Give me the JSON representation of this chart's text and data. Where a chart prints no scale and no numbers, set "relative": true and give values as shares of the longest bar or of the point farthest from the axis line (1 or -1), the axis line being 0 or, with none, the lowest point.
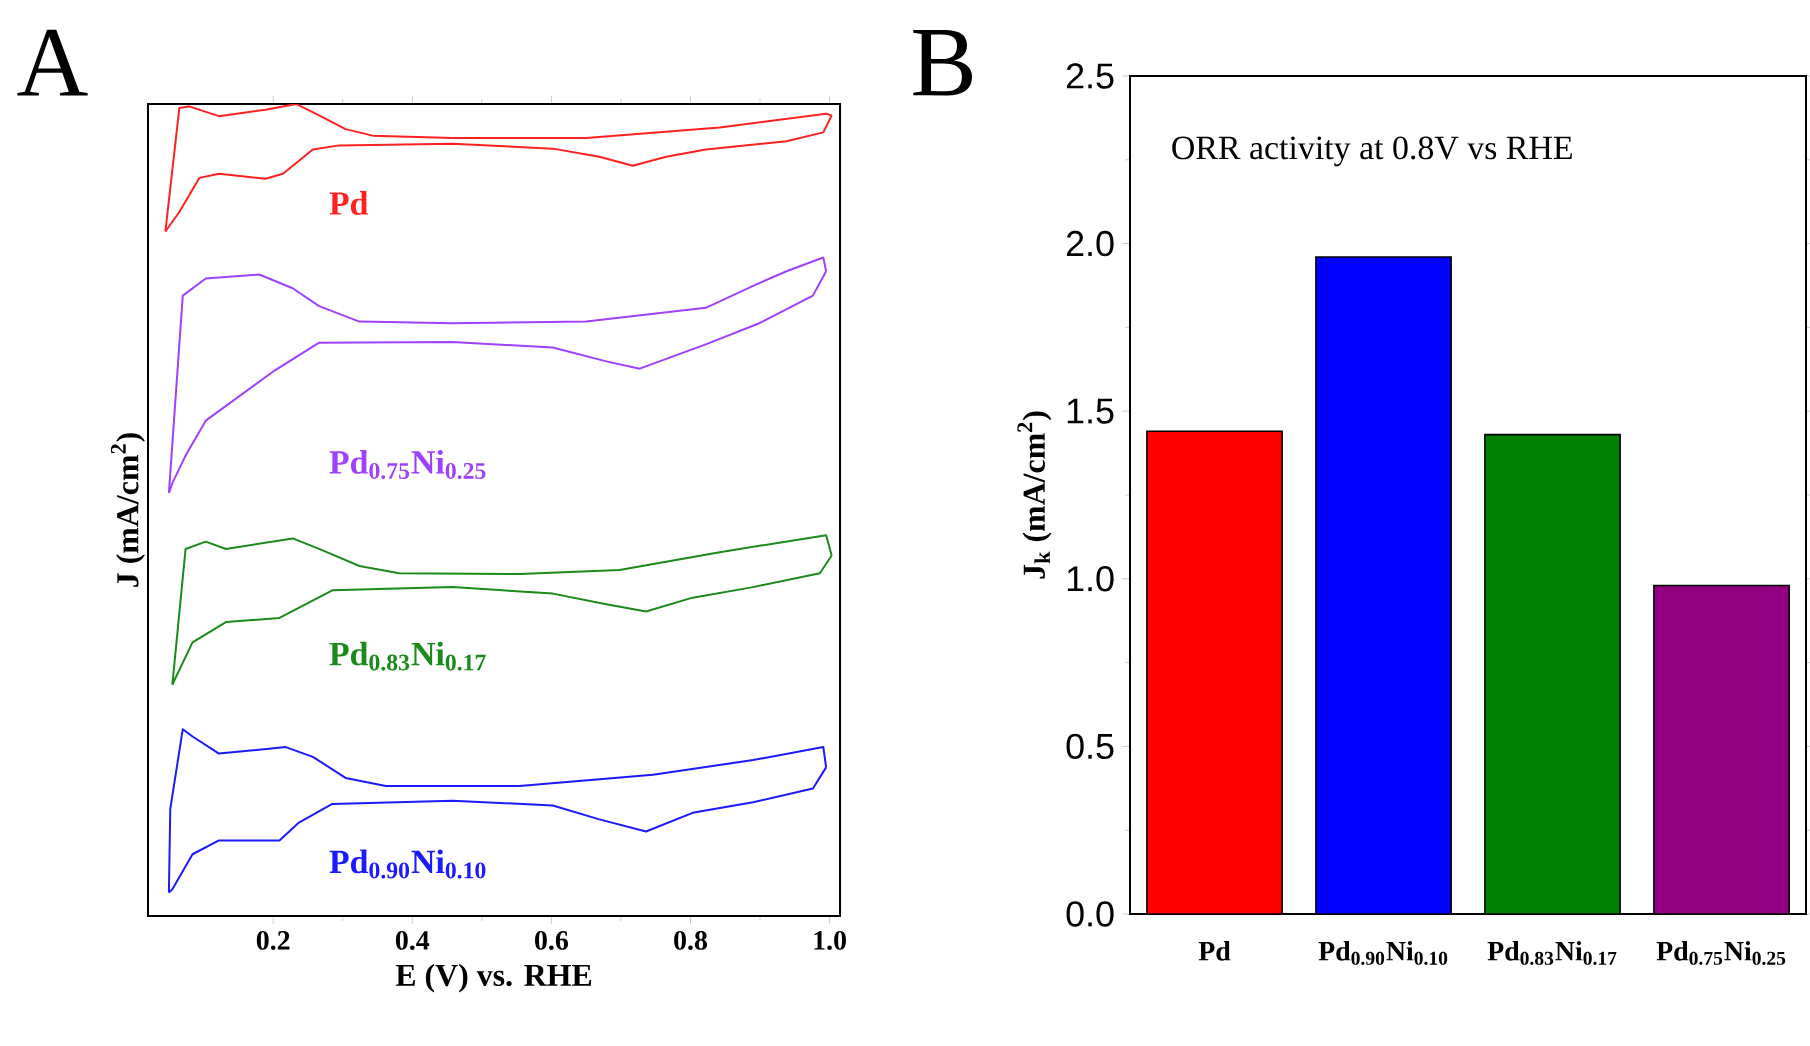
{
  "chart_data": [
    {
      "type": "line",
      "relative": true,
      "tick_labels": "x",
      "xlabel": "E (V) vs. RHE",
      "ylabel": "J (mA/cm$^{2}$)",
      "annotations": [
        "A"
      ],
      "xlim": [
        0.02,
        1.015
      ],
      "xticks": [
        0.2,
        0.4,
        0.6,
        0.8,
        {
          "value": 1,
          "label": "1.0"
        }
      ],
      "series": [
        {
          "name": "Pd",
          "color": "#ff2020",
          "x": [
            0.045,
            0.065,
            0.079,
            0.122,
            0.189,
            0.233,
            0.266,
            0.304,
            0.343,
            0.458,
            0.65,
            0.842,
            0.995,
            1.003
          ],
          "values": [
            0.843,
            0.995,
            0.997,
            0.985,
            0.993,
            1.0,
            0.986,
            0.969,
            0.961,
            0.958,
            0.958,
            0.971,
            0.988,
            0.986
          ]
        },
        {
          "color": "#ff2020",
          "x": [
            1.003,
            0.991,
            0.938,
            0.822,
            0.765,
            0.717,
            0.669,
            0.602,
            0.458,
            0.295,
            0.257,
            0.214,
            0.189,
            0.122,
            0.094,
            0.065,
            0.045
          ],
          "values": [
            0.986,
            0.965,
            0.954,
            0.944,
            0.935,
            0.924,
            0.935,
            0.945,
            0.951,
            0.949,
            0.944,
            0.914,
            0.908,
            0.914,
            0.909,
            0.867,
            0.843
          ]
        },
        {
          "name": "Pd$_{0.75}$Ni$_{0.25}$",
          "color": "#a040ff",
          "x": [
            0.05,
            0.07,
            0.103,
            0.18,
            0.228,
            0.266,
            0.324,
            0.458,
            0.65,
            0.822,
            0.89,
            0.938,
            0.991,
            0.995
          ],
          "values": [
            0.521,
            0.764,
            0.785,
            0.79,
            0.773,
            0.751,
            0.732,
            0.73,
            0.732,
            0.749,
            0.776,
            0.794,
            0.811,
            0.794
          ]
        },
        {
          "color": "#a040ff",
          "x": [
            0.995,
            0.976,
            0.899,
            0.822,
            0.727,
            0.679,
            0.602,
            0.458,
            0.266,
            0.199,
            0.151,
            0.103,
            0.074,
            0.055,
            0.05
          ],
          "values": [
            0.794,
            0.764,
            0.73,
            0.704,
            0.674,
            0.683,
            0.7,
            0.707,
            0.706,
            0.67,
            0.64,
            0.61,
            0.567,
            0.533,
            0.521
          ]
        },
        {
          "name": "Pd$_{0.83}$Ni$_{0.17}$",
          "color": "#1a8a1a",
          "x": [
            0.055,
            0.074,
            0.103,
            0.132,
            0.228,
            0.266,
            0.324,
            0.381,
            0.554,
            0.698,
            0.842,
            0.995,
            1.003
          ],
          "values": [
            0.285,
            0.452,
            0.461,
            0.452,
            0.465,
            0.452,
            0.431,
            0.422,
            0.421,
            0.426,
            0.448,
            0.469,
            0.444
          ]
        },
        {
          "color": "#1a8a1a",
          "x": [
            1.003,
            0.986,
            0.89,
            0.803,
            0.736,
            0.679,
            0.602,
            0.458,
            0.285,
            0.247,
            0.209,
            0.132,
            0.084,
            0.055
          ],
          "values": [
            0.444,
            0.422,
            0.405,
            0.392,
            0.375,
            0.384,
            0.397,
            0.405,
            0.401,
            0.384,
            0.367,
            0.362,
            0.337,
            0.285
          ]
        },
        {
          "name": "Pd$_{0.90}$Ni$_{0.10}$",
          "color": "#1a1aff",
          "x": [
            0.05,
            0.052,
            0.07,
            0.084,
            0.122,
            0.218,
            0.257,
            0.304,
            0.362,
            0.554,
            0.746,
            0.89,
            0.991,
            0.995
          ],
          "values": [
            0.029,
            0.132,
            0.23,
            0.221,
            0.2,
            0.208,
            0.196,
            0.17,
            0.16,
            0.16,
            0.174,
            0.192,
            0.208,
            0.183
          ]
        },
        {
          "color": "#1a1aff",
          "x": [
            0.995,
            0.976,
            0.89,
            0.803,
            0.736,
            0.669,
            0.602,
            0.458,
            0.285,
            0.237,
            0.209,
            0.122,
            0.084,
            0.055,
            0.05
          ],
          "values": [
            0.183,
            0.157,
            0.14,
            0.127,
            0.104,
            0.119,
            0.136,
            0.142,
            0.138,
            0.115,
            0.093,
            0.093,
            0.076,
            0.033,
            0.029
          ]
        }
      ]
    },
    {
      "type": "bar",
      "title": "ORR activity at 0.8V vs RHE",
      "ylabel": "J$_{k}$ (mA/cm$^{2}$)",
      "annotations": [
        "B"
      ],
      "categories": [
        "Pd",
        "Pd$_{0.90}$Ni$_{0.10}$",
        "Pd$_{0.83}$Ni$_{0.17}$",
        "Pd$_{0.75}$Ni$_{0.25}$"
      ],
      "values": [
        1.44,
        1.96,
        1.43,
        0.98
      ],
      "colors": [
        "#ff0000",
        "#0000ff",
        "#008000",
        "#900080"
      ],
      "ylim": [
        0,
        2.5
      ],
      "yticks": [
        {
          "value": 0,
          "label": "0.0"
        },
        0.5,
        {
          "value": 1,
          "label": "1.0"
        },
        1.5,
        {
          "value": 2,
          "label": "2.0"
        },
        2.5
      ]
    }
  ]
}
